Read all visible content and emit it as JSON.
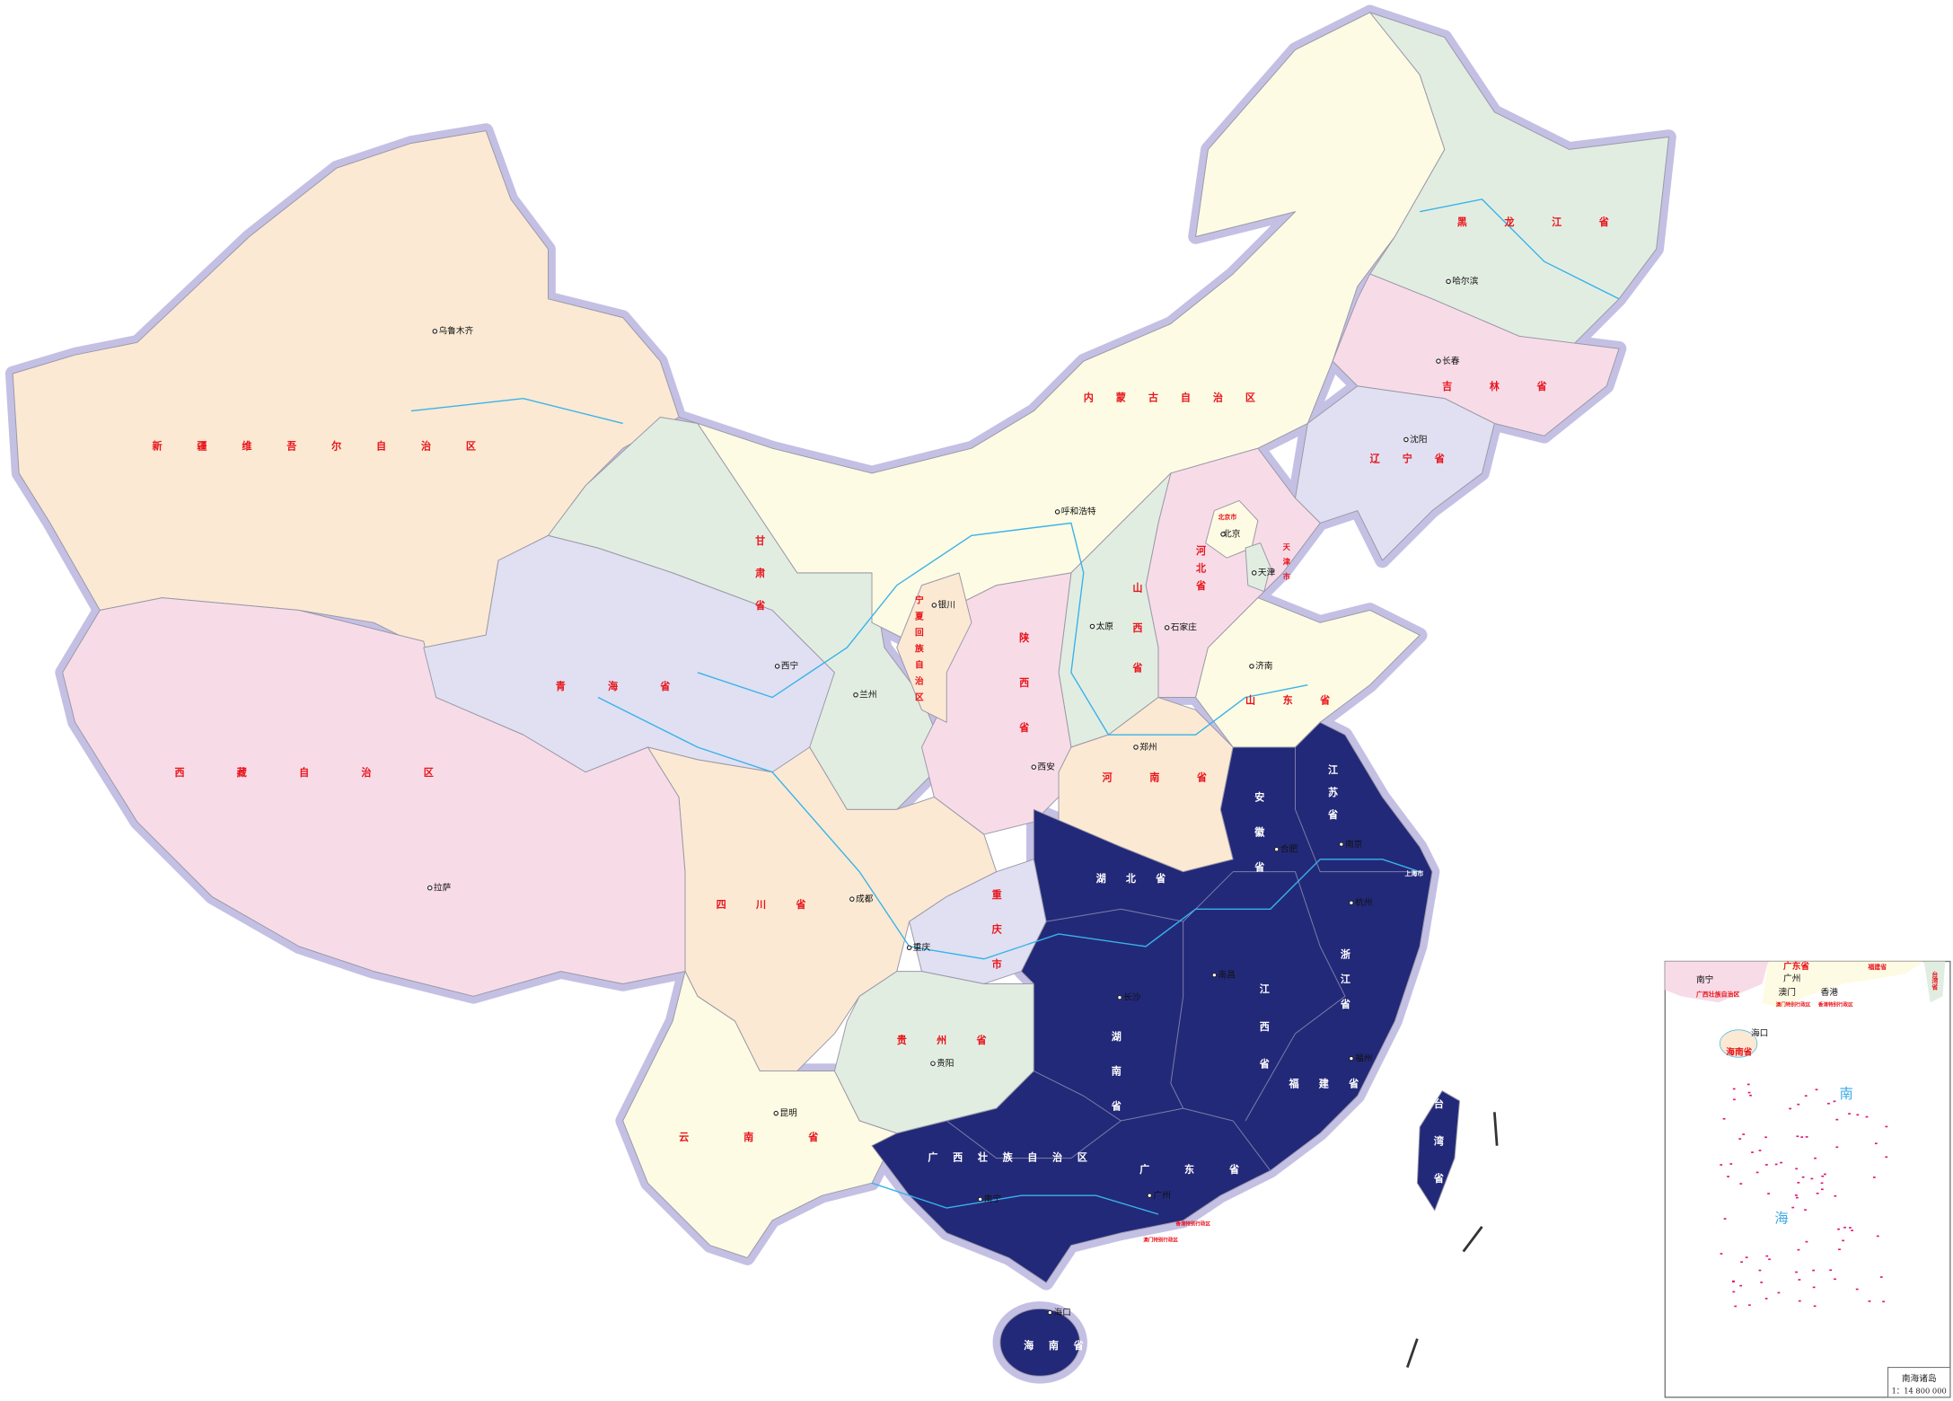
{
  "map": {
    "highlight_color": "#232979",
    "border_color": "#c4c0e4",
    "river_color": "#38b3ea",
    "province_label_color": "#e8141b",
    "provinces": [
      {
        "name": "新疆维吾尔自治区",
        "color": "#fbe9d3"
      },
      {
        "name": "西藏自治区",
        "color": "#f7dce8"
      },
      {
        "name": "青海省",
        "color": "#e0e0f2"
      },
      {
        "name": "甘肃省",
        "color": "#e2ede2"
      },
      {
        "name": "内蒙古自治区",
        "color": "#fdfbe3"
      },
      {
        "name": "黑龙江省",
        "color": "#e2ede2"
      },
      {
        "name": "吉林省",
        "color": "#f7dce8"
      },
      {
        "name": "辽宁省",
        "color": "#e0e0f2"
      },
      {
        "name": "河北省",
        "color": "#f7dce8"
      },
      {
        "name": "北京市",
        "color": "#fdfbe3"
      },
      {
        "name": "天津市",
        "color": "#e2ede2"
      },
      {
        "name": "山西省",
        "color": "#e2ede2"
      },
      {
        "name": "陕西省",
        "color": "#f7dce8"
      },
      {
        "name": "宁夏回族自治区",
        "color": "#fbe9d3"
      },
      {
        "name": "河南省",
        "color": "#fbe9d3"
      },
      {
        "name": "山东省",
        "color": "#fdfbe3"
      },
      {
        "name": "四川省",
        "color": "#fbe9d3"
      },
      {
        "name": "重庆市",
        "color": "#e0e0f2"
      },
      {
        "name": "贵州省",
        "color": "#e2ede2"
      },
      {
        "name": "云南省",
        "color": "#fdfbe3"
      },
      {
        "name": "江苏省",
        "color": "#232979"
      },
      {
        "name": "安徽省",
        "color": "#232979"
      },
      {
        "name": "上海市",
        "color": "#232979"
      },
      {
        "name": "浙江省",
        "color": "#232979"
      },
      {
        "name": "湖北省",
        "color": "#232979"
      },
      {
        "name": "湖南省",
        "color": "#232979"
      },
      {
        "name": "江西省",
        "color": "#232979"
      },
      {
        "name": "福建省",
        "color": "#232979"
      },
      {
        "name": "广东省",
        "color": "#232979"
      },
      {
        "name": "广西壮族自治区",
        "color": "#232979"
      },
      {
        "name": "海南省",
        "color": "#232979"
      },
      {
        "name": "台湾省",
        "color": "#232979"
      },
      {
        "name": "香港特别行政区",
        "color": "#232979"
      },
      {
        "name": "澳门特别行政区",
        "color": "#232979"
      }
    ],
    "cities": [
      "乌鲁木齐",
      "拉萨",
      "西宁",
      "兰州",
      "银川",
      "呼和浩特",
      "北京",
      "天津",
      "石家庄",
      "太原",
      "济南",
      "郑州",
      "西安",
      "成都",
      "重庆",
      "贵阳",
      "昆明",
      "南宁",
      "广州",
      "长沙",
      "南昌",
      "福州",
      "杭州",
      "合肥",
      "南京",
      "沈阳",
      "长春",
      "哈尔滨",
      "海口"
    ]
  },
  "inset": {
    "title": "南海诸岛",
    "scale": "1：14 800 000",
    "sea_chars": [
      "南",
      "海"
    ],
    "labels": [
      "南宁",
      "广西壮族自治区",
      "广州",
      "广东省",
      "福建省",
      "台湾省",
      "澳门",
      "香港",
      "澳门特别行政区",
      "香港特别行政区",
      "海口",
      "海南省"
    ]
  }
}
